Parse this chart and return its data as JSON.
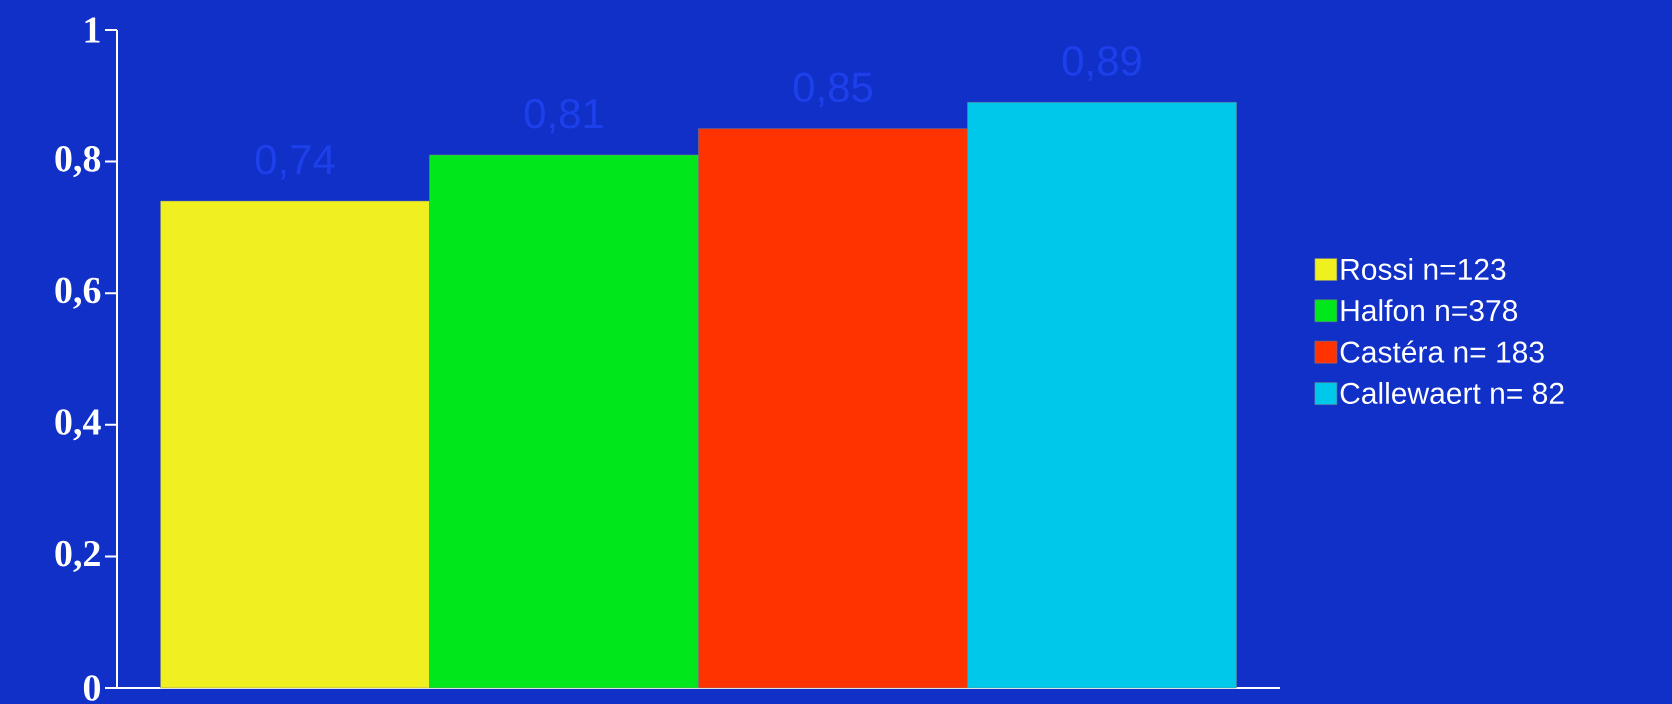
{
  "chart_data": {
    "type": "bar",
    "categories": [
      null
    ],
    "series": [
      {
        "name": "Rossi n=123",
        "color": "#f0f020",
        "values": [
          0.74
        ],
        "value_labels": [
          "0,74"
        ]
      },
      {
        "name": "Halfon n=378",
        "color": "#00e81c",
        "values": [
          0.81
        ],
        "value_labels": [
          "0,81"
        ]
      },
      {
        "name": "Castéra n= 183",
        "color": "#ff3300",
        "values": [
          0.85
        ],
        "value_labels": [
          "0,85"
        ]
      },
      {
        "name": "Callewaert n= 82",
        "color": "#00c8ea",
        "values": [
          0.89
        ],
        "value_labels": [
          "0,89"
        ]
      }
    ],
    "ylim": [
      0,
      1
    ],
    "yticks": [
      0,
      {
        "value": 0.2,
        "label": "0,2"
      },
      {
        "value": 0.4,
        "label": "0,4"
      },
      {
        "value": 0.6,
        "label": "0,6"
      },
      {
        "value": 0.8,
        "label": "0,8"
      },
      1
    ],
    "legend": "right"
  }
}
